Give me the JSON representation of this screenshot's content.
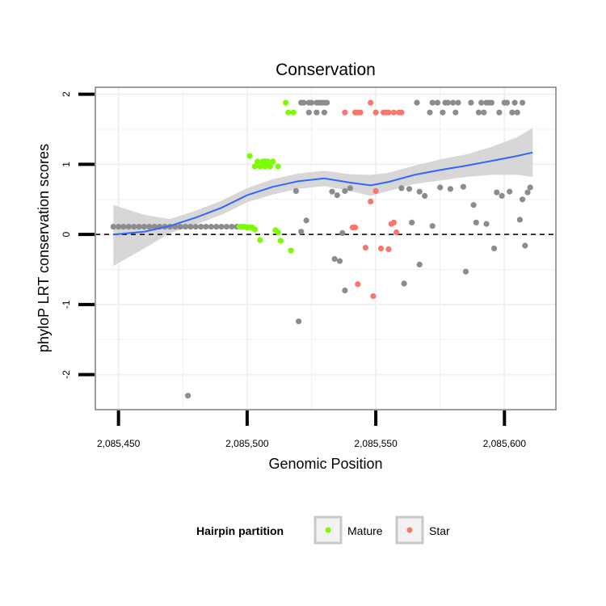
{
  "chart_data": {
    "type": "scatter",
    "title": "Conservation",
    "xlabel": "Genomic Position",
    "ylabel": "phyloP LRT conservation scores",
    "xlim": [
      2085441,
      2085620
    ],
    "ylim": [
      -2.5,
      2.1
    ],
    "x_ticks": [
      2085450,
      2085500,
      2085550,
      2085600
    ],
    "x_tick_labels": [
      "2,085,450",
      "2,085,500",
      "2,085,550",
      "2,085,600"
    ],
    "y_ticks": [
      2,
      1,
      0,
      -1,
      -2
    ],
    "y_tick_labels": [
      "2",
      "1",
      "0",
      "-1",
      "-2"
    ],
    "reference_line": {
      "y": 0,
      "style": "dashed"
    },
    "grid": true,
    "legend": {
      "title": "Hairpin partition",
      "position": "bottom",
      "entries": [
        {
          "label": "Mature",
          "color": "#7CFC00"
        },
        {
          "label": "Star",
          "color": "#F8766D"
        }
      ]
    },
    "colors": {
      "other": "#8c8c8c",
      "Mature": "#7CFC00",
      "Star": "#F8766D",
      "smooth_line": "#3366FF",
      "smooth_band": "#d3d3d3"
    },
    "series": [
      {
        "name": "Other",
        "points": [
          [
            2085448,
            0.11
          ],
          [
            2085450,
            0.11
          ],
          [
            2085452,
            0.11
          ],
          [
            2085454,
            0.11
          ],
          [
            2085456,
            0.11
          ],
          [
            2085458,
            0.11
          ],
          [
            2085460,
            0.11
          ],
          [
            2085462,
            0.11
          ],
          [
            2085464,
            0.11
          ],
          [
            2085466,
            0.11
          ],
          [
            2085468,
            0.11
          ],
          [
            2085470,
            0.11
          ],
          [
            2085472,
            0.11
          ],
          [
            2085474,
            0.11
          ],
          [
            2085476,
            0.11
          ],
          [
            2085478,
            0.11
          ],
          [
            2085480,
            0.11
          ],
          [
            2085482,
            0.11
          ],
          [
            2085484,
            0.11
          ],
          [
            2085486,
            0.11
          ],
          [
            2085488,
            0.11
          ],
          [
            2085490,
            0.11
          ],
          [
            2085492,
            0.11
          ],
          [
            2085494,
            0.11
          ],
          [
            2085496,
            0.11
          ],
          [
            2085477,
            -2.3
          ],
          [
            2085519,
            0.62
          ],
          [
            2085520,
            -1.24
          ],
          [
            2085521,
            0.04
          ],
          [
            2085523,
            0.2
          ],
          [
            2085521,
            1.88
          ],
          [
            2085522,
            1.88
          ],
          [
            2085524,
            1.88
          ],
          [
            2085525,
            1.88
          ],
          [
            2085527,
            1.88
          ],
          [
            2085528,
            1.88
          ],
          [
            2085529,
            1.88
          ],
          [
            2085530,
            1.88
          ],
          [
            2085531,
            1.88
          ],
          [
            2085524,
            1.74
          ],
          [
            2085527,
            1.74
          ],
          [
            2085530,
            1.74
          ],
          [
            2085533,
            0.61
          ],
          [
            2085535,
            0.56
          ],
          [
            2085536,
            -0.38
          ],
          [
            2085538,
            0.62
          ],
          [
            2085534,
            -0.35
          ],
          [
            2085537,
            0.02
          ],
          [
            2085538,
            -0.8
          ],
          [
            2085540,
            0.66
          ],
          [
            2085560,
            0.66
          ],
          [
            2085561,
            -0.7
          ],
          [
            2085563,
            0.65
          ],
          [
            2085564,
            0.17
          ],
          [
            2085566,
            1.88
          ],
          [
            2085567,
            0.61
          ],
          [
            2085567,
            -0.43
          ],
          [
            2085569,
            0.55
          ],
          [
            2085571,
            1.74
          ],
          [
            2085572,
            0.12
          ],
          [
            2085572,
            1.88
          ],
          [
            2085574,
            1.88
          ],
          [
            2085575,
            0.67
          ],
          [
            2085576,
            1.74
          ],
          [
            2085577,
            1.88
          ],
          [
            2085578,
            1.88
          ],
          [
            2085579,
            0.65
          ],
          [
            2085580,
            1.88
          ],
          [
            2085581,
            1.74
          ],
          [
            2085582,
            1.88
          ],
          [
            2085584,
            0.68
          ],
          [
            2085585,
            -0.53
          ],
          [
            2085587,
            1.88
          ],
          [
            2085588,
            0.42
          ],
          [
            2085589,
            0.17
          ],
          [
            2085590,
            1.74
          ],
          [
            2085591,
            1.88
          ],
          [
            2085592,
            1.74
          ],
          [
            2085593,
            0.15
          ],
          [
            2085593,
            1.88
          ],
          [
            2085594,
            1.88
          ],
          [
            2085595,
            1.88
          ],
          [
            2085596,
            -0.2
          ],
          [
            2085597,
            0.6
          ],
          [
            2085598,
            1.74
          ],
          [
            2085599,
            0.55
          ],
          [
            2085600,
            1.88
          ],
          [
            2085601,
            1.88
          ],
          [
            2085602,
            0.61
          ],
          [
            2085603,
            1.74
          ],
          [
            2085604,
            1.88
          ],
          [
            2085605,
            1.74
          ],
          [
            2085606,
            0.21
          ],
          [
            2085607,
            0.5
          ],
          [
            2085607,
            1.88
          ],
          [
            2085608,
            -0.16
          ],
          [
            2085609,
            0.6
          ],
          [
            2085610,
            0.67
          ]
        ]
      },
      {
        "name": "Mature",
        "points": [
          [
            2085497,
            0.11
          ],
          [
            2085498,
            0.11
          ],
          [
            2085499,
            0.11
          ],
          [
            2085500,
            0.1
          ],
          [
            2085501,
            0.1
          ],
          [
            2085502,
            0.1
          ],
          [
            2085501,
            1.12
          ],
          [
            2085503,
            0.97
          ],
          [
            2085504,
            1.04
          ],
          [
            2085505,
            0.97
          ],
          [
            2085506,
            1.04
          ],
          [
            2085507,
            0.97
          ],
          [
            2085507,
            1.04
          ],
          [
            2085508,
            1.04
          ],
          [
            2085509,
            0.97
          ],
          [
            2085510,
            1.04
          ],
          [
            2085512,
            0.97
          ],
          [
            2085503,
            0.07
          ],
          [
            2085505,
            -0.08
          ],
          [
            2085511,
            0.06
          ],
          [
            2085512,
            0.03
          ],
          [
            2085513,
            -0.09
          ],
          [
            2085515,
            1.88
          ],
          [
            2085516,
            1.74
          ],
          [
            2085517,
            -0.23
          ],
          [
            2085518,
            1.74
          ]
        ]
      },
      {
        "name": "Star",
        "points": [
          [
            2085538,
            1.74
          ],
          [
            2085542,
            1.74
          ],
          [
            2085543,
            1.74
          ],
          [
            2085544,
            1.74
          ],
          [
            2085548,
            1.88
          ],
          [
            2085550,
            1.74
          ],
          [
            2085553,
            1.74
          ],
          [
            2085554,
            1.74
          ],
          [
            2085555,
            1.74
          ],
          [
            2085557,
            1.74
          ],
          [
            2085559,
            1.74
          ],
          [
            2085560,
            1.74
          ],
          [
            2085541,
            0.1
          ],
          [
            2085542,
            0.1
          ],
          [
            2085543,
            -0.71
          ],
          [
            2085546,
            -0.19
          ],
          [
            2085548,
            0.47
          ],
          [
            2085549,
            -0.88
          ],
          [
            2085550,
            0.62
          ],
          [
            2085552,
            -0.2
          ],
          [
            2085555,
            -0.21
          ],
          [
            2085556,
            0.15
          ],
          [
            2085557,
            0.17
          ],
          [
            2085558,
            0.03
          ]
        ]
      }
    ],
    "smooth": {
      "x": [
        2085448,
        2085460,
        2085470,
        2085480,
        2085490,
        2085500,
        2085510,
        2085520,
        2085530,
        2085540,
        2085548,
        2085555,
        2085565,
        2085575,
        2085585,
        2085595,
        2085605,
        2085611
      ],
      "y": [
        0.0,
        0.04,
        0.12,
        0.24,
        0.38,
        0.56,
        0.68,
        0.76,
        0.8,
        0.74,
        0.7,
        0.75,
        0.85,
        0.92,
        0.98,
        1.05,
        1.12,
        1.17
      ],
      "lower": [
        -0.45,
        -0.2,
        0.02,
        0.14,
        0.28,
        0.46,
        0.57,
        0.65,
        0.69,
        0.62,
        0.55,
        0.62,
        0.72,
        0.77,
        0.82,
        0.85,
        0.85,
        0.82
      ],
      "upper": [
        0.42,
        0.28,
        0.22,
        0.34,
        0.48,
        0.66,
        0.79,
        0.87,
        0.91,
        0.86,
        0.85,
        0.88,
        0.98,
        1.07,
        1.14,
        1.25,
        1.39,
        1.52
      ]
    }
  }
}
